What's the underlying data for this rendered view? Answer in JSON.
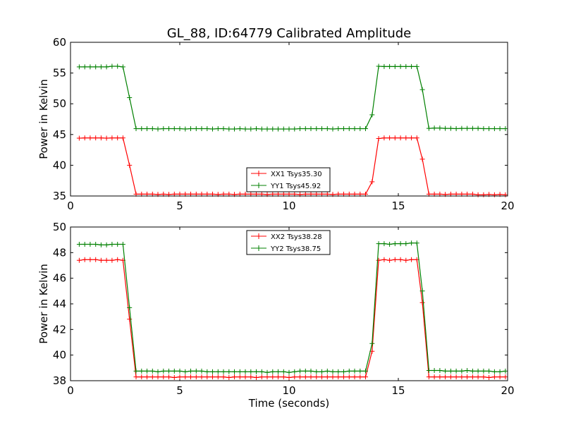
{
  "figure": {
    "title": "GL_88, ID:64779 Calibrated Amplitude",
    "xlabel": "Time (seconds)"
  },
  "chart_data": [
    {
      "type": "line",
      "title": "GL_88, ID:64779 Calibrated Amplitude",
      "xlabel": "",
      "ylabel": "Power in Kelvin",
      "xlim": [
        0,
        20
      ],
      "ylim": [
        35,
        60
      ],
      "xticks": [
        0,
        5,
        10,
        15,
        20
      ],
      "yticks": [
        35,
        40,
        45,
        50,
        55,
        60
      ],
      "grid": false,
      "legend_position": "bottom-center",
      "x": [
        0.4,
        0.65,
        0.9,
        1.15,
        1.4,
        1.65,
        1.9,
        2.15,
        2.4,
        2.7,
        3.0,
        3.25,
        3.5,
        3.75,
        4.0,
        4.25,
        4.5,
        4.75,
        5.0,
        5.25,
        5.5,
        5.75,
        6.0,
        6.25,
        6.5,
        6.75,
        7.0,
        7.25,
        7.5,
        7.75,
        8.0,
        8.25,
        8.5,
        8.75,
        9.0,
        9.25,
        9.5,
        9.75,
        10.0,
        10.25,
        10.5,
        10.75,
        11.0,
        11.25,
        11.5,
        11.75,
        12.0,
        12.25,
        12.5,
        12.75,
        13.0,
        13.25,
        13.5,
        13.8,
        14.1,
        14.35,
        14.6,
        14.85,
        15.1,
        15.35,
        15.6,
        15.85,
        16.1,
        16.4,
        16.65,
        16.9,
        17.15,
        17.4,
        17.65,
        17.9,
        18.15,
        18.4,
        18.65,
        18.9,
        19.15,
        19.4,
        19.65,
        19.9
      ],
      "series": [
        {
          "name": "XX1 Tsys35.30",
          "color": "#ff0000",
          "values": [
            44.4,
            44.45,
            44.45,
            44.45,
            44.45,
            44.4,
            44.45,
            44.45,
            44.45,
            40.0,
            35.3,
            35.3,
            35.3,
            35.3,
            35.25,
            35.3,
            35.25,
            35.3,
            35.3,
            35.3,
            35.3,
            35.3,
            35.3,
            35.3,
            35.3,
            35.25,
            35.3,
            35.3,
            35.25,
            35.3,
            35.3,
            35.3,
            35.3,
            35.3,
            35.25,
            35.3,
            35.3,
            35.3,
            35.3,
            35.3,
            35.25,
            35.3,
            35.3,
            35.3,
            35.3,
            35.3,
            35.25,
            35.3,
            35.3,
            35.3,
            35.3,
            35.3,
            35.3,
            37.3,
            44.35,
            44.45,
            44.45,
            44.45,
            44.45,
            44.45,
            44.45,
            44.45,
            41.0,
            35.3,
            35.3,
            35.3,
            35.25,
            35.3,
            35.3,
            35.3,
            35.3,
            35.3,
            35.2,
            35.2,
            35.25,
            35.2,
            35.25,
            35.2
          ]
        },
        {
          "name": "YY1 Tsys45.92",
          "color": "#008000",
          "values": [
            56.0,
            56.0,
            56.0,
            56.0,
            56.0,
            56.0,
            56.1,
            56.1,
            56.0,
            51.0,
            45.95,
            45.95,
            45.95,
            45.95,
            45.9,
            45.95,
            45.95,
            45.95,
            45.95,
            45.9,
            45.95,
            45.95,
            45.95,
            45.95,
            45.9,
            45.95,
            45.95,
            45.9,
            45.9,
            45.95,
            45.9,
            45.9,
            45.95,
            45.9,
            45.9,
            45.9,
            45.9,
            45.9,
            45.9,
            45.9,
            45.95,
            45.95,
            45.95,
            45.95,
            45.95,
            45.95,
            45.9,
            45.95,
            45.95,
            45.95,
            45.95,
            45.95,
            45.95,
            48.2,
            56.1,
            56.05,
            56.05,
            56.05,
            56.05,
            56.05,
            56.05,
            56.05,
            52.3,
            46.0,
            46.05,
            46.05,
            46.0,
            46.0,
            45.95,
            46.0,
            46.0,
            46.0,
            46.0,
            45.95,
            45.95,
            45.95,
            45.95,
            45.95
          ]
        }
      ]
    },
    {
      "type": "line",
      "title": "",
      "xlabel": "Time (seconds)",
      "ylabel": "Power in Kelvin",
      "xlim": [
        0,
        20
      ],
      "ylim": [
        38,
        50
      ],
      "xticks": [
        0,
        5,
        10,
        15,
        20
      ],
      "yticks": [
        38,
        40,
        42,
        44,
        46,
        48,
        50
      ],
      "grid": false,
      "legend_position": "top-center",
      "x": [
        0.4,
        0.65,
        0.9,
        1.15,
        1.4,
        1.65,
        1.9,
        2.15,
        2.4,
        2.7,
        3.0,
        3.25,
        3.5,
        3.75,
        4.0,
        4.25,
        4.5,
        4.75,
        5.0,
        5.25,
        5.5,
        5.75,
        6.0,
        6.25,
        6.5,
        6.75,
        7.0,
        7.25,
        7.5,
        7.75,
        8.0,
        8.25,
        8.5,
        8.75,
        9.0,
        9.25,
        9.5,
        9.75,
        10.0,
        10.25,
        10.5,
        10.75,
        11.0,
        11.25,
        11.5,
        11.75,
        12.0,
        12.25,
        12.5,
        12.75,
        13.0,
        13.25,
        13.5,
        13.8,
        14.1,
        14.35,
        14.6,
        14.85,
        15.1,
        15.35,
        15.6,
        15.85,
        16.1,
        16.4,
        16.65,
        16.9,
        17.15,
        17.4,
        17.65,
        17.9,
        18.15,
        18.4,
        18.65,
        18.9,
        19.15,
        19.4,
        19.65,
        19.9
      ],
      "series": [
        {
          "name": "XX2 Tsys38.28",
          "color": "#ff0000",
          "values": [
            47.4,
            47.45,
            47.45,
            47.45,
            47.4,
            47.4,
            47.4,
            47.45,
            47.4,
            42.8,
            38.3,
            38.3,
            38.3,
            38.3,
            38.3,
            38.3,
            38.3,
            38.25,
            38.3,
            38.3,
            38.3,
            38.3,
            38.3,
            38.3,
            38.3,
            38.3,
            38.3,
            38.25,
            38.3,
            38.3,
            38.3,
            38.3,
            38.25,
            38.3,
            38.3,
            38.3,
            38.3,
            38.3,
            38.25,
            38.3,
            38.3,
            38.3,
            38.3,
            38.3,
            38.3,
            38.3,
            38.3,
            38.3,
            38.3,
            38.3,
            38.3,
            38.3,
            38.3,
            40.3,
            47.4,
            47.45,
            47.4,
            47.45,
            47.45,
            47.4,
            47.45,
            47.45,
            44.1,
            38.3,
            38.3,
            38.3,
            38.3,
            38.3,
            38.3,
            38.3,
            38.3,
            38.3,
            38.3,
            38.3,
            38.25,
            38.3,
            38.3,
            38.3
          ]
        },
        {
          "name": "YY2 Tsys38.75",
          "color": "#008000",
          "values": [
            48.65,
            48.65,
            48.65,
            48.65,
            48.6,
            48.6,
            48.65,
            48.65,
            48.65,
            43.7,
            38.75,
            38.75,
            38.75,
            38.75,
            38.7,
            38.75,
            38.75,
            38.75,
            38.75,
            38.7,
            38.75,
            38.75,
            38.75,
            38.7,
            38.7,
            38.7,
            38.7,
            38.7,
            38.7,
            38.7,
            38.7,
            38.7,
            38.7,
            38.7,
            38.65,
            38.7,
            38.7,
            38.7,
            38.65,
            38.7,
            38.75,
            38.75,
            38.75,
            38.7,
            38.7,
            38.75,
            38.7,
            38.7,
            38.7,
            38.75,
            38.75,
            38.75,
            38.75,
            40.9,
            48.7,
            48.7,
            48.65,
            48.7,
            48.7,
            48.7,
            48.75,
            48.75,
            45.0,
            38.8,
            38.8,
            38.8,
            38.75,
            38.75,
            38.75,
            38.75,
            38.8,
            38.75,
            38.75,
            38.75,
            38.75,
            38.7,
            38.7,
            38.75
          ]
        }
      ]
    }
  ]
}
